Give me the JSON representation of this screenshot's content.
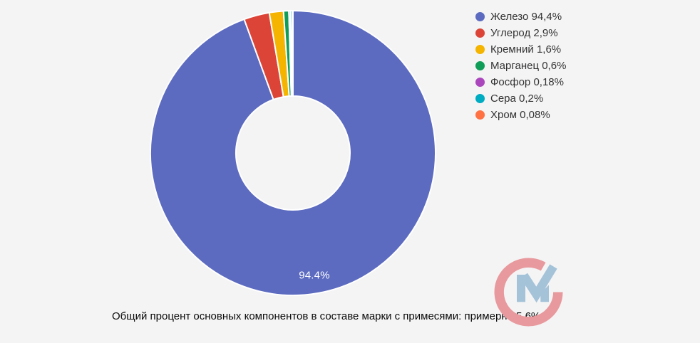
{
  "background_color": "#f4f4f5",
  "chart_data": {
    "type": "pie",
    "donut_hole_ratio": 0.4,
    "start_angle_deg": 0,
    "legend_position": "right",
    "grid": false,
    "slices": [
      {
        "label": "Железо",
        "value": 94.4,
        "legend": "Железо 94,4%",
        "color": "#5c6bc0"
      },
      {
        "label": "Углерод",
        "value": 2.9,
        "legend": "Углерод 2,9%",
        "color": "#db4437"
      },
      {
        "label": "Кремний",
        "value": 1.6,
        "legend": "Кремний 1,6%",
        "color": "#f4b400"
      },
      {
        "label": "Марганец",
        "value": 0.6,
        "legend": "Марганец 0,6%",
        "color": "#0f9d58"
      },
      {
        "label": "Фосфор",
        "value": 0.18,
        "legend": "Фосфор 0,18%",
        "color": "#ab47bc"
      },
      {
        "label": "Сера",
        "value": 0.2,
        "legend": "Сера 0,2%",
        "color": "#00acc1"
      },
      {
        "label": "Хром",
        "value": 0.08,
        "legend": "Хром 0,08%",
        "color": "#ff7043"
      }
    ],
    "inside_label": {
      "text": "94.4%",
      "color": "#ffffff"
    },
    "slice_border_color": "#ffffff"
  },
  "caption": {
    "text": "Общий процент основных компонентов в составе марки с примесями: примерно 5,6%"
  },
  "logo": {
    "name": "cm-watermark",
    "c_color": "#e8999d",
    "m_color": "#a4c2d8"
  }
}
